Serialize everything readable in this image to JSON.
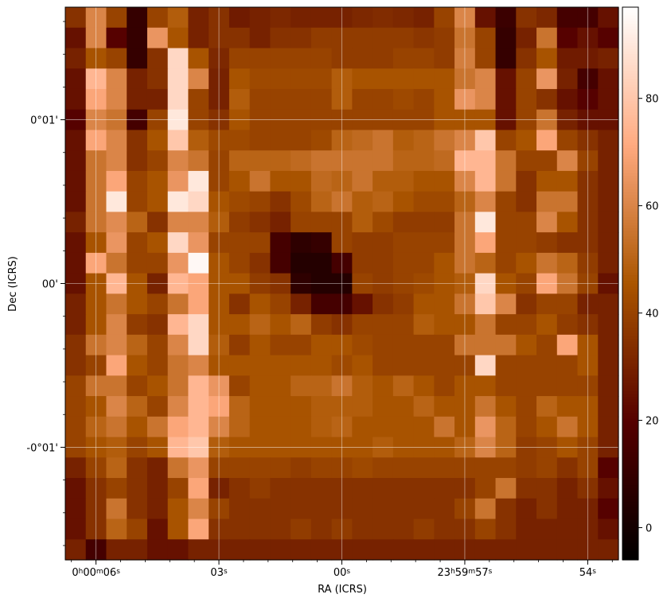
{
  "chart_data": {
    "type": "heatmap",
    "title": "",
    "xlabel": "RA (ICRS)",
    "ylabel": "Dec (ICRS)",
    "x_tick_labels": [
      {
        "pre": "0",
        "sup1": "h",
        "mid": "00",
        "sup2": "m",
        "mid2": "06",
        "sup3": "s"
      },
      {
        "pre": "",
        "sup1": "",
        "mid": "",
        "sup2": "",
        "mid2": "03",
        "sup3": "s"
      },
      {
        "pre": "",
        "sup1": "",
        "mid": "",
        "sup2": "",
        "mid2": "00",
        "sup3": "s"
      },
      {
        "pre": "23",
        "sup1": "h",
        "mid": "59",
        "sup2": "m",
        "mid2": "57",
        "sup3": "s"
      },
      {
        "pre": "",
        "sup1": "",
        "mid": "",
        "sup2": "",
        "mid2": "54",
        "sup3": "s"
      }
    ],
    "x_tick_columns": [
      1.5,
      7.5,
      13.5,
      19.5,
      25.5
    ],
    "y_tick_labels": [
      "0°01'",
      "00'",
      "-0°01'"
    ],
    "y_tick_rows": [
      5.5,
      13.5,
      21.5
    ],
    "grid": true,
    "colorbar": {
      "min": -6,
      "max": 97,
      "ticks": [
        0,
        20,
        40,
        60,
        80
      ],
      "cmap": "gist_heat"
    },
    "n_cols": 27,
    "n_rows": 27,
    "values": [
      [
        35,
        60,
        40,
        10,
        40,
        48,
        30,
        35,
        28,
        30,
        32,
        30,
        30,
        30,
        32,
        33,
        32,
        30,
        40,
        60,
        25,
        12,
        35,
        32,
        15,
        15,
        25
      ],
      [
        25,
        60,
        20,
        10,
        65,
        45,
        30,
        35,
        35,
        30,
        35,
        35,
        38,
        38,
        38,
        38,
        38,
        36,
        38,
        55,
        40,
        10,
        30,
        55,
        20,
        25,
        20
      ],
      [
        30,
        45,
        40,
        10,
        35,
        85,
        45,
        32,
        40,
        40,
        40,
        40,
        40,
        38,
        38,
        38,
        40,
        40,
        38,
        58,
        40,
        10,
        35,
        45,
        28,
        28,
        30
      ],
      [
        25,
        75,
        60,
        30,
        35,
        85,
        60,
        30,
        45,
        42,
        42,
        42,
        42,
        48,
        45,
        45,
        45,
        45,
        45,
        55,
        60,
        25,
        40,
        65,
        30,
        15,
        25
      ],
      [
        25,
        70,
        60,
        30,
        30,
        85,
        40,
        30,
        48,
        40,
        40,
        40,
        40,
        48,
        40,
        40,
        42,
        40,
        45,
        65,
        60,
        25,
        40,
        35,
        25,
        20,
        25
      ],
      [
        20,
        60,
        55,
        15,
        40,
        90,
        40,
        35,
        45,
        40,
        40,
        40,
        40,
        40,
        40,
        40,
        40,
        40,
        45,
        45,
        45,
        25,
        40,
        55,
        30,
        25,
        25
      ],
      [
        25,
        70,
        60,
        35,
        45,
        80,
        48,
        42,
        42,
        40,
        40,
        40,
        42,
        50,
        52,
        55,
        48,
        50,
        55,
        60,
        80,
        40,
        45,
        70,
        40,
        35,
        30
      ],
      [
        25,
        55,
        60,
        35,
        40,
        60,
        55,
        40,
        50,
        50,
        50,
        52,
        55,
        55,
        55,
        55,
        50,
        50,
        52,
        75,
        75,
        55,
        40,
        40,
        60,
        40,
        30
      ],
      [
        25,
        55,
        70,
        40,
        45,
        65,
        90,
        40,
        45,
        55,
        45,
        45,
        52,
        50,
        55,
        48,
        48,
        45,
        45,
        60,
        75,
        55,
        35,
        45,
        45,
        35,
        30
      ],
      [
        25,
        55,
        90,
        40,
        45,
        90,
        85,
        45,
        42,
        40,
        35,
        42,
        50,
        55,
        48,
        50,
        45,
        42,
        42,
        50,
        60,
        40,
        35,
        55,
        55,
        35,
        30
      ],
      [
        30,
        55,
        62,
        50,
        35,
        60,
        60,
        48,
        38,
        35,
        30,
        40,
        40,
        40,
        48,
        42,
        38,
        38,
        38,
        55,
        90,
        40,
        40,
        60,
        45,
        35,
        30
      ],
      [
        25,
        45,
        65,
        40,
        45,
        85,
        65,
        40,
        40,
        40,
        15,
        8,
        10,
        40,
        38,
        38,
        40,
        40,
        40,
        55,
        70,
        40,
        40,
        38,
        35,
        35,
        30
      ],
      [
        25,
        70,
        55,
        40,
        40,
        65,
        95,
        45,
        40,
        35,
        15,
        5,
        5,
        15,
        38,
        38,
        40,
        40,
        45,
        55,
        50,
        40,
        45,
        55,
        50,
        38,
        30
      ],
      [
        25,
        45,
        75,
        45,
        30,
        75,
        70,
        45,
        45,
        38,
        35,
        8,
        5,
        5,
        40,
        38,
        40,
        42,
        45,
        48,
        85,
        45,
        40,
        70,
        55,
        40,
        25
      ],
      [
        30,
        45,
        55,
        45,
        40,
        55,
        70,
        45,
        35,
        45,
        40,
        30,
        15,
        15,
        25,
        35,
        38,
        45,
        45,
        55,
        80,
        60,
        35,
        40,
        40,
        30,
        30
      ],
      [
        30,
        45,
        60,
        38,
        35,
        75,
        85,
        45,
        45,
        50,
        45,
        50,
        38,
        35,
        40,
        40,
        40,
        48,
        45,
        45,
        55,
        40,
        40,
        45,
        38,
        35,
        30
      ],
      [
        35,
        55,
        60,
        50,
        40,
        60,
        85,
        48,
        38,
        45,
        40,
        40,
        45,
        45,
        42,
        40,
        40,
        40,
        40,
        55,
        55,
        55,
        45,
        40,
        70,
        45,
        30
      ],
      [
        35,
        40,
        70,
        45,
        40,
        55,
        60,
        45,
        45,
        45,
        45,
        45,
        45,
        42,
        45,
        40,
        40,
        40,
        40,
        40,
        85,
        40,
        40,
        40,
        40,
        45,
        30
      ],
      [
        40,
        55,
        55,
        40,
        45,
        55,
        75,
        65,
        40,
        45,
        45,
        50,
        50,
        55,
        48,
        45,
        50,
        45,
        40,
        45,
        45,
        40,
        40,
        40,
        40,
        40,
        30
      ],
      [
        40,
        45,
        60,
        50,
        40,
        60,
        75,
        70,
        50,
        45,
        45,
        45,
        48,
        48,
        48,
        45,
        45,
        50,
        45,
        45,
        55,
        45,
        40,
        50,
        45,
        45,
        30
      ],
      [
        40,
        50,
        55,
        45,
        55,
        70,
        75,
        60,
        50,
        45,
        45,
        45,
        48,
        50,
        45,
        45,
        45,
        45,
        55,
        45,
        65,
        50,
        40,
        45,
        55,
        45,
        30
      ],
      [
        40,
        45,
        48,
        40,
        45,
        75,
        80,
        48,
        45,
        45,
        45,
        45,
        45,
        45,
        45,
        48,
        45,
        45,
        45,
        50,
        60,
        50,
        38,
        40,
        45,
        40,
        30
      ],
      [
        30,
        40,
        50,
        35,
        30,
        55,
        65,
        40,
        40,
        40,
        40,
        38,
        40,
        40,
        42,
        40,
        40,
        40,
        40,
        40,
        40,
        40,
        38,
        40,
        35,
        40,
        20
      ],
      [
        25,
        35,
        40,
        35,
        30,
        40,
        70,
        30,
        35,
        38,
        35,
        35,
        35,
        35,
        35,
        35,
        35,
        35,
        35,
        35,
        40,
        55,
        35,
        35,
        30,
        35,
        25
      ],
      [
        25,
        35,
        55,
        35,
        30,
        45,
        60,
        40,
        35,
        35,
        35,
        35,
        35,
        35,
        35,
        35,
        35,
        35,
        35,
        40,
        55,
        35,
        30,
        35,
        30,
        30,
        20
      ],
      [
        25,
        35,
        50,
        40,
        25,
        45,
        70,
        35,
        35,
        35,
        35,
        38,
        35,
        38,
        35,
        35,
        35,
        38,
        35,
        35,
        40,
        35,
        30,
        30,
        30,
        30,
        25
      ],
      [
        30,
        15,
        30,
        30,
        25,
        25,
        30,
        30,
        30,
        30,
        30,
        30,
        30,
        30,
        30,
        30,
        30,
        30,
        30,
        30,
        30,
        30,
        30,
        30,
        30,
        30,
        30
      ]
    ]
  }
}
